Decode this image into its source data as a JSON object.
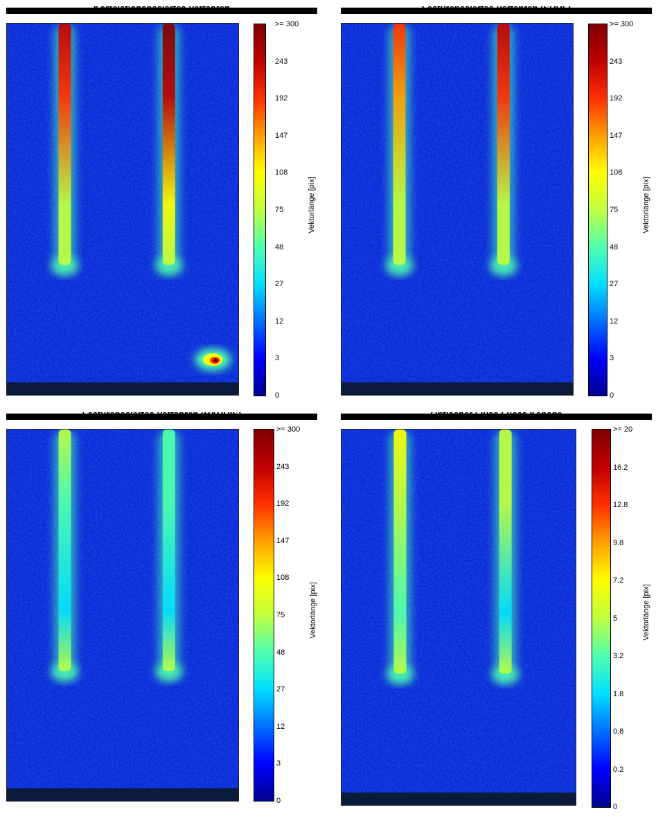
{
  "colormap": [
    "#00008f",
    "#0000ff",
    "#006fff",
    "#00dfff",
    "#4fffaf",
    "#bfff3f",
    "#ffff00",
    "#ff9f00",
    "#ff3000",
    "#c00000",
    "#800000"
  ],
  "chart_data": [
    {
      "type": "heatmap",
      "title": "Korrelationsbasiertes Verfahren",
      "colorbar_label": "Vektorlänge [pix]",
      "colorbar_ticks": [
        ">= 300",
        "243",
        "192",
        "147",
        "108",
        "75",
        "48",
        "27",
        "12",
        "3",
        "0"
      ],
      "colorbar_range": [
        0,
        300
      ],
      "features": {
        "slots": [
          {
            "position": "left",
            "level": 0.88
          },
          {
            "position": "right",
            "level": 0.95
          }
        ],
        "hotspot": {
          "position": "bottom-right",
          "level": 1.0
        }
      }
    },
    {
      "type": "heatmap",
      "title": "Featurebasiertes Verfahren (SURF)",
      "colorbar_label": "Vektorlänge [pix]",
      "colorbar_ticks": [
        ">= 300",
        "243",
        "192",
        "147",
        "108",
        "75",
        "48",
        "27",
        "12",
        "3",
        "0"
      ],
      "colorbar_range": [
        0,
        300
      ],
      "features": {
        "slots": [
          {
            "position": "left",
            "level": 0.78
          },
          {
            "position": "right",
            "level": 0.9
          }
        ]
      }
    },
    {
      "type": "heatmap",
      "title": "Featurebasiertes Verfahren (HARRIS)",
      "colorbar_label": "Vektorlänge [pix]",
      "colorbar_ticks": [
        ">= 300",
        "243",
        "192",
        "147",
        "108",
        "75",
        "48",
        "27",
        "12",
        "3",
        "0"
      ],
      "colorbar_range": [
        0,
        300
      ],
      "features": {
        "slots": [
          {
            "position": "left",
            "level": 0.45
          },
          {
            "position": "right",
            "level": 0.42
          }
        ]
      }
    },
    {
      "type": "heatmap",
      "title": "Optischer Fluss Lucas Kanade",
      "colorbar_label": "Vektorlänge [pix]",
      "colorbar_ticks": [
        ">= 20",
        "16.2",
        "12.8",
        "9.8",
        "7.2",
        "5",
        "3.2",
        "1.8",
        "0.8",
        "0.2",
        "0"
      ],
      "colorbar_range": [
        0,
        20
      ],
      "features": {
        "slots": [
          {
            "position": "left",
            "level": 0.6
          },
          {
            "position": "right",
            "level": 0.5
          }
        ]
      }
    }
  ]
}
